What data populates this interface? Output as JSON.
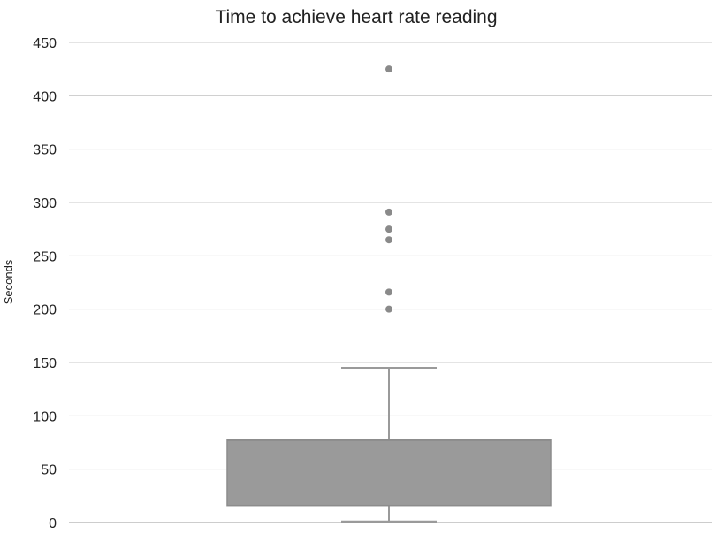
{
  "chart_data": {
    "type": "box",
    "title": "Time to achieve heart rate reading",
    "xlabel": "",
    "ylabel": "Seconds",
    "ylim": [
      0,
      450
    ],
    "yticks": [
      0,
      50,
      100,
      150,
      200,
      250,
      300,
      350,
      400,
      450
    ],
    "grid": true,
    "legend": "none",
    "box": {
      "min": 1,
      "q1": 16,
      "median": 77,
      "q3": 78,
      "max": 145
    },
    "outliers": [
      200,
      216,
      265,
      275,
      291,
      425
    ],
    "colors": {
      "box_fill": "#9a9a9a",
      "box_stroke": "#8c8c8c",
      "whisker": "#9a9a9a",
      "outlier": "#8a8a8a",
      "grid": "#c9c9c9"
    }
  }
}
